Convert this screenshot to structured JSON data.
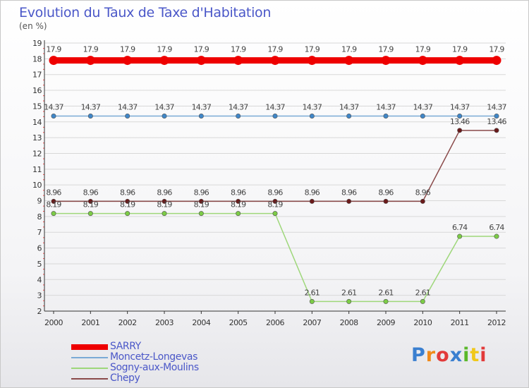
{
  "title": "Evolution du Taux de Taxe d'Habitation",
  "unit": "(en %)",
  "logo": {
    "text": "Proxiti",
    "letters": [
      "P",
      "r",
      "o",
      "x",
      "i",
      "t",
      "i"
    ],
    "colors": [
      "#3a7fd0",
      "#f08a1a",
      "#e23a3a",
      "#3a7fd0",
      "#5ab82a",
      "#f0c81a",
      "#e23a3a"
    ]
  },
  "chart_data": {
    "type": "line",
    "title": "Evolution du Taux de Taxe d'Habitation",
    "ylabel": "(en %)",
    "xlabel": "",
    "ylim": [
      2,
      19
    ],
    "yticks": [
      "2",
      "3",
      "4",
      "5",
      "6",
      "7",
      "8",
      "9",
      "10",
      "11",
      "12",
      "13",
      "14",
      "15",
      "16",
      "17",
      "18",
      "19"
    ],
    "x": [
      "2000",
      "2001",
      "2002",
      "2003",
      "2004",
      "2005",
      "2006",
      "2007",
      "2008",
      "2009",
      "2010",
      "2011",
      "2012"
    ],
    "grid": "horizontal",
    "legend_position": "bottom-left",
    "series": [
      {
        "name": "SARRY",
        "color": "#ee0000",
        "marker_color": "#ee0000",
        "values": [
          17.9,
          17.9,
          17.9,
          17.9,
          17.9,
          17.9,
          17.9,
          17.9,
          17.9,
          17.9,
          17.9,
          17.9,
          17.9
        ],
        "labels": [
          "17.9",
          "17.9",
          "17.9",
          "17.9",
          "17.9",
          "17.9",
          "17.9",
          "17.9",
          "17.9",
          "17.9",
          "17.9",
          "17.9",
          "17.9"
        ]
      },
      {
        "name": "Moncetz-Longevas",
        "color": "#7aaad6",
        "marker_color": "#3f86c8",
        "values": [
          14.37,
          14.37,
          14.37,
          14.37,
          14.37,
          14.37,
          14.37,
          14.37,
          14.37,
          14.37,
          14.37,
          14.37,
          14.37
        ],
        "labels": [
          "14.37",
          "14.37",
          "14.37",
          "14.37",
          "14.37",
          "14.37",
          "14.37",
          "14.37",
          "14.37",
          "14.37",
          "14.37",
          "14.37",
          "14.37"
        ]
      },
      {
        "name": "Sogny-aux-Moulins",
        "color": "#9ed77a",
        "marker_color": "#7ccc46",
        "values": [
          8.19,
          8.19,
          8.19,
          8.19,
          8.19,
          8.19,
          8.19,
          2.61,
          2.61,
          2.61,
          2.61,
          6.74,
          6.74
        ],
        "labels": [
          "8.19",
          "8.19",
          "8.19",
          "8.19",
          "8.19",
          "8.19",
          "8.19",
          "2.61",
          "2.61",
          "2.61",
          "2.61",
          "6.74",
          "6.74"
        ]
      },
      {
        "name": "Chepy",
        "color": "#8a4a4a",
        "marker_color": "#6a1a1a",
        "values": [
          8.96,
          8.96,
          8.96,
          8.96,
          8.96,
          8.96,
          8.96,
          8.96,
          8.96,
          8.96,
          8.96,
          13.46,
          13.46
        ],
        "labels": [
          "8.96",
          "8.96",
          "8.96",
          "8.96",
          "8.96",
          "8.96",
          "8.96",
          "8.96",
          "8.96",
          "8.96",
          "8.96",
          "13.46",
          "13.46"
        ]
      }
    ]
  }
}
